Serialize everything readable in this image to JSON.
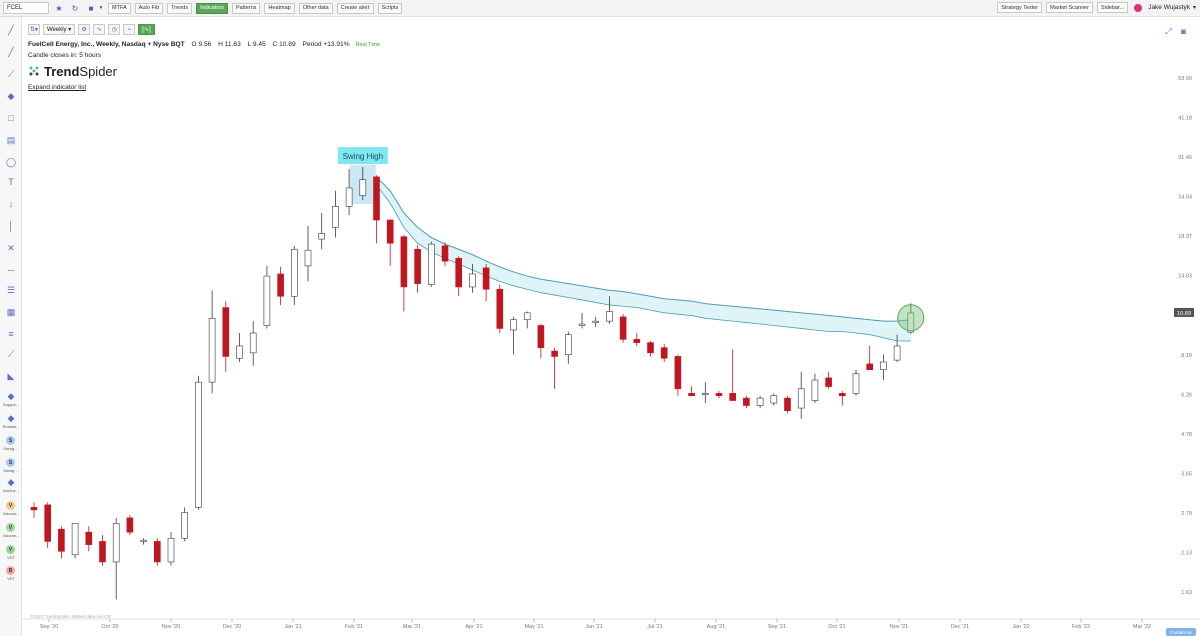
{
  "toolbar": {
    "symbol": "FCEL",
    "buttons": [
      "MTFA",
      "Auto Fib",
      "Trends",
      "Indicators",
      "Patterns",
      "Heatmap",
      "Other data",
      "Create alert",
      "Scripts"
    ],
    "active_button": "Indicators",
    "right_buttons": [
      "Strategy Tester",
      "Market Scanner",
      "Sidebar..."
    ],
    "user_name": "Jake Wujastyk"
  },
  "chart_toolbar": {
    "interval": "Weekly"
  },
  "header": {
    "title": "FuelCell Energy, Inc., Weekly, Nasdaq + Nyse BQT",
    "open": "O 9.56",
    "high": "H 11.63",
    "low": "L 9.45",
    "close": "C 10.89",
    "period": "Period +13.91%",
    "realtime": "Real Time",
    "candle_closes": "Candle closes in: 5 hours"
  },
  "logo": {
    "brand_bold": "Trend",
    "brand_light": "Spider"
  },
  "expand_link": "Expand indicator list",
  "copyright": "©2021 TrendSpider. Market data via ICE",
  "contact_label": "Contact us",
  "left_tools": [
    {
      "label": "Suppor..."
    },
    {
      "label": "Resista..."
    },
    {
      "badge": "S",
      "label": "Swing ..."
    },
    {
      "badge": "S",
      "label": "Swing ..."
    },
    {
      "label": "Anchor..."
    },
    {
      "badge": "V",
      "label": "Volume..."
    },
    {
      "badge": "V",
      "label": "Volume..."
    },
    {
      "badge": "V",
      "label": "VST"
    },
    {
      "badge": "B",
      "label": "VST"
    }
  ],
  "colors": {
    "up_body": "#ffffff",
    "up_border": "#3a3a3a",
    "down_body": "#c0161f",
    "band_fill": "#dff4f7",
    "band_line": "#4a9cb7",
    "swing_label_bg": "#7fe7f2",
    "swing_box": "#bfe3f2",
    "circle": "#7bc47b"
  },
  "chart_data": {
    "type": "candlestick",
    "y_scale": "log",
    "y_ticks": [
      53.9,
      41.18,
      31.46,
      24.04,
      18.37,
      14.03,
      10.72,
      8.19,
      6.26,
      4.78,
      3.65,
      2.79,
      2.13,
      1.63
    ],
    "y_tick_labels": [
      "53.90",
      "41.18",
      "31.46",
      "24.04",
      "18.37",
      "14.03",
      "",
      "8.19",
      "6.26",
      "4.78",
      "3.65",
      "2.79",
      "2.13",
      "1.63"
    ],
    "last_price_label": "10.89",
    "x_labels": [
      "Sep '20",
      "Oct '20",
      "Nov '20",
      "Dec '20",
      "Jan '21",
      "Feb '21",
      "Mar '21",
      "Apr '21",
      "May '21",
      "Jun '21",
      "Jul '21",
      "Aug '21",
      "Sep '21",
      "Oct '21",
      "Nov '21",
      "Dec '21",
      "Jan '22",
      "Feb '22",
      "Mar '22"
    ],
    "annotation": "Swing High",
    "candles": [
      {
        "o": 2.9,
        "h": 3.0,
        "l": 2.7,
        "c": 2.85
      },
      {
        "o": 2.95,
        "h": 3.0,
        "l": 2.2,
        "c": 2.3
      },
      {
        "o": 2.5,
        "h": 2.55,
        "l": 2.05,
        "c": 2.15
      },
      {
        "o": 2.1,
        "h": 2.6,
        "l": 2.05,
        "c": 2.6
      },
      {
        "o": 2.45,
        "h": 2.55,
        "l": 2.15,
        "c": 2.25
      },
      {
        "o": 2.3,
        "h": 2.4,
        "l": 1.95,
        "c": 2.0
      },
      {
        "o": 2.0,
        "h": 2.7,
        "l": 1.55,
        "c": 2.6
      },
      {
        "o": 2.7,
        "h": 2.75,
        "l": 2.4,
        "c": 2.45
      },
      {
        "o": 2.3,
        "h": 2.35,
        "l": 2.25,
        "c": 2.32
      },
      {
        "o": 2.3,
        "h": 2.35,
        "l": 1.95,
        "c": 2.0
      },
      {
        "o": 2.0,
        "h": 2.45,
        "l": 1.95,
        "c": 2.35
      },
      {
        "o": 2.35,
        "h": 2.9,
        "l": 2.3,
        "c": 2.8
      },
      {
        "o": 2.9,
        "h": 7.1,
        "l": 2.85,
        "c": 6.8
      },
      {
        "o": 6.8,
        "h": 12.7,
        "l": 6.3,
        "c": 10.5
      },
      {
        "o": 11.3,
        "h": 11.8,
        "l": 7.3,
        "c": 8.1
      },
      {
        "o": 8.0,
        "h": 9.5,
        "l": 7.8,
        "c": 8.7
      },
      {
        "o": 8.3,
        "h": 10.3,
        "l": 7.6,
        "c": 9.5
      },
      {
        "o": 10.0,
        "h": 15.0,
        "l": 9.8,
        "c": 14.0
      },
      {
        "o": 14.2,
        "h": 14.9,
        "l": 11.5,
        "c": 12.2
      },
      {
        "o": 12.2,
        "h": 17.2,
        "l": 11.5,
        "c": 16.8
      },
      {
        "o": 15.0,
        "h": 19.7,
        "l": 13.5,
        "c": 16.7
      },
      {
        "o": 18.0,
        "h": 21.5,
        "l": 16.8,
        "c": 18.7
      },
      {
        "o": 19.5,
        "h": 25.0,
        "l": 18.2,
        "c": 22.5
      },
      {
        "o": 22.5,
        "h": 29.0,
        "l": 21.2,
        "c": 25.5
      },
      {
        "o": 24.2,
        "h": 29.4,
        "l": 23.5,
        "c": 27.0
      },
      {
        "o": 27.5,
        "h": 27.8,
        "l": 17.5,
        "c": 20.5
      },
      {
        "o": 20.5,
        "h": 20.6,
        "l": 15.0,
        "c": 17.5
      },
      {
        "o": 18.3,
        "h": 18.5,
        "l": 11.0,
        "c": 13.0
      },
      {
        "o": 16.8,
        "h": 17.3,
        "l": 12.5,
        "c": 13.3
      },
      {
        "o": 13.2,
        "h": 17.7,
        "l": 13.0,
        "c": 17.4
      },
      {
        "o": 17.2,
        "h": 17.6,
        "l": 15.0,
        "c": 15.5
      },
      {
        "o": 15.8,
        "h": 16.0,
        "l": 12.2,
        "c": 13.0
      },
      {
        "o": 13.0,
        "h": 15.2,
        "l": 12.5,
        "c": 14.2
      },
      {
        "o": 14.8,
        "h": 15.2,
        "l": 11.8,
        "c": 12.8
      },
      {
        "o": 12.8,
        "h": 13.2,
        "l": 9.5,
        "c": 9.8
      },
      {
        "o": 9.7,
        "h": 10.6,
        "l": 8.2,
        "c": 10.4
      },
      {
        "o": 10.4,
        "h": 11.0,
        "l": 9.8,
        "c": 10.9
      },
      {
        "o": 10.0,
        "h": 10.1,
        "l": 8.0,
        "c": 8.6
      },
      {
        "o": 8.4,
        "h": 8.6,
        "l": 6.5,
        "c": 8.1
      },
      {
        "o": 8.2,
        "h": 9.6,
        "l": 7.7,
        "c": 9.4
      },
      {
        "o": 10.0,
        "h": 10.9,
        "l": 9.8,
        "c": 10.1
      },
      {
        "o": 10.2,
        "h": 10.6,
        "l": 9.9,
        "c": 10.3
      },
      {
        "o": 10.3,
        "h": 12.2,
        "l": 10.1,
        "c": 11.0
      },
      {
        "o": 10.6,
        "h": 10.8,
        "l": 8.9,
        "c": 9.1
      },
      {
        "o": 9.1,
        "h": 9.5,
        "l": 8.7,
        "c": 8.9
      },
      {
        "o": 8.9,
        "h": 9.0,
        "l": 8.1,
        "c": 8.3
      },
      {
        "o": 8.6,
        "h": 8.8,
        "l": 7.8,
        "c": 8.0
      },
      {
        "o": 8.1,
        "h": 8.2,
        "l": 6.2,
        "c": 6.5
      },
      {
        "o": 6.3,
        "h": 6.6,
        "l": 6.2,
        "c": 6.2
      },
      {
        "o": 6.25,
        "h": 6.8,
        "l": 5.9,
        "c": 6.3
      },
      {
        "o": 6.3,
        "h": 6.4,
        "l": 6.1,
        "c": 6.2
      },
      {
        "o": 6.3,
        "h": 8.5,
        "l": 6.1,
        "c": 6.0
      },
      {
        "o": 6.1,
        "h": 6.2,
        "l": 5.7,
        "c": 5.8
      },
      {
        "o": 5.8,
        "h": 6.2,
        "l": 5.7,
        "c": 6.1
      },
      {
        "o": 5.9,
        "h": 6.3,
        "l": 5.8,
        "c": 6.2
      },
      {
        "o": 6.1,
        "h": 6.2,
        "l": 5.5,
        "c": 5.6
      },
      {
        "o": 5.7,
        "h": 7.3,
        "l": 5.3,
        "c": 6.5
      },
      {
        "o": 6.0,
        "h": 7.2,
        "l": 5.9,
        "c": 6.9
      },
      {
        "o": 7.0,
        "h": 7.3,
        "l": 6.5,
        "c": 6.6
      },
      {
        "o": 6.3,
        "h": 6.4,
        "l": 5.8,
        "c": 6.2
      },
      {
        "o": 6.3,
        "h": 7.4,
        "l": 6.2,
        "c": 7.2
      },
      {
        "o": 7.7,
        "h": 8.7,
        "l": 7.4,
        "c": 7.4
      },
      {
        "o": 7.4,
        "h": 8.2,
        "l": 6.9,
        "c": 7.8
      },
      {
        "o": 7.9,
        "h": 9.4,
        "l": 7.8,
        "c": 8.7
      },
      {
        "o": 9.56,
        "h": 11.63,
        "l": 9.45,
        "c": 10.89
      }
    ],
    "ema_band_upper": [
      27.5,
      25.0,
      21.5,
      19.5,
      18.2,
      17.4,
      16.8,
      16.2,
      15.5,
      14.9,
      14.4,
      14.0,
      13.7,
      13.5,
      13.3,
      13.1,
      12.9,
      12.7,
      12.6,
      12.4,
      12.2,
      12.0,
      11.9,
      11.8,
      11.6,
      11.5,
      11.4,
      11.3,
      11.2,
      11.1,
      11.0,
      10.9,
      10.8,
      10.7,
      10.6,
      10.5,
      10.4,
      10.3,
      10.3,
      10.4
    ],
    "ema_band_lower": [
      26.0,
      23.0,
      19.5,
      17.5,
      16.5,
      15.8,
      15.2,
      14.6,
      14.0,
      13.5,
      13.1,
      12.8,
      12.5,
      12.3,
      12.1,
      11.9,
      11.7,
      11.5,
      11.4,
      11.3,
      11.1,
      10.9,
      10.8,
      10.7,
      10.5,
      10.4,
      10.3,
      10.2,
      10.1,
      10.0,
      9.9,
      9.8,
      9.7,
      9.6,
      9.6,
      9.5,
      9.4,
      9.2,
      9.0,
      9.0
    ]
  }
}
